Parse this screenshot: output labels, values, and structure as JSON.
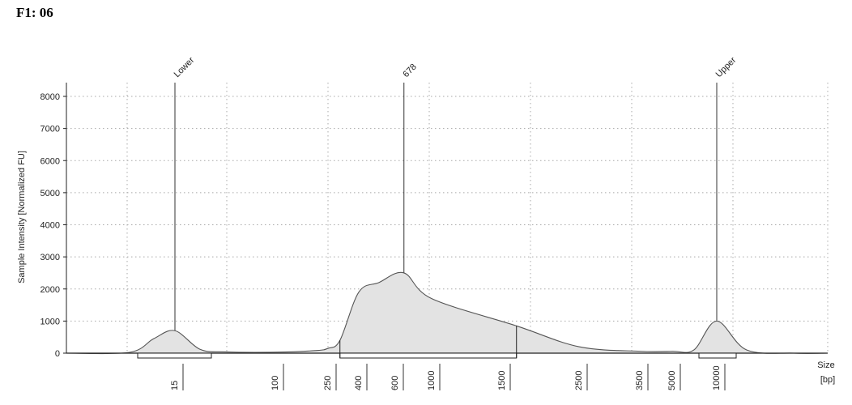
{
  "sample_label": "F1: 06",
  "chart_data": {
    "type": "area",
    "title": "",
    "ylabel": "Sample Intensity [Normalized FU]",
    "xlabel": "Size",
    "xlabel_unit": "[bp]",
    "ylim": [
      0,
      8500
    ],
    "y_ticks": [
      0,
      1000,
      2000,
      3000,
      4000,
      5000,
      6000,
      7000,
      8000
    ],
    "x_ticks": [
      "15",
      "100",
      "250",
      "400",
      "600",
      "1000",
      "1500",
      "2500",
      "3500",
      "5000",
      "10000"
    ],
    "grid": true,
    "markers": [
      {
        "label": "Lower",
        "size_bp": 15,
        "peak": 700
      },
      {
        "label": "678",
        "size_bp": 678,
        "peak": 2500
      },
      {
        "label": "Upper",
        "size_bp": 10000,
        "peak": 1000
      }
    ],
    "region": {
      "from_bp": 300,
      "to_bp": 1650
    },
    "series": [
      {
        "x": [
          15,
          30,
          60,
          100,
          200,
          250,
          300,
          400,
          500,
          678,
          1000,
          1650,
          2500,
          3500,
          5000,
          7000,
          10000,
          12000,
          16000
        ],
        "y": [
          700,
          120,
          40,
          30,
          80,
          150,
          400,
          1900,
          2200,
          2500,
          1700,
          850,
          200,
          60,
          60,
          100,
          1000,
          100,
          0
        ]
      }
    ]
  }
}
